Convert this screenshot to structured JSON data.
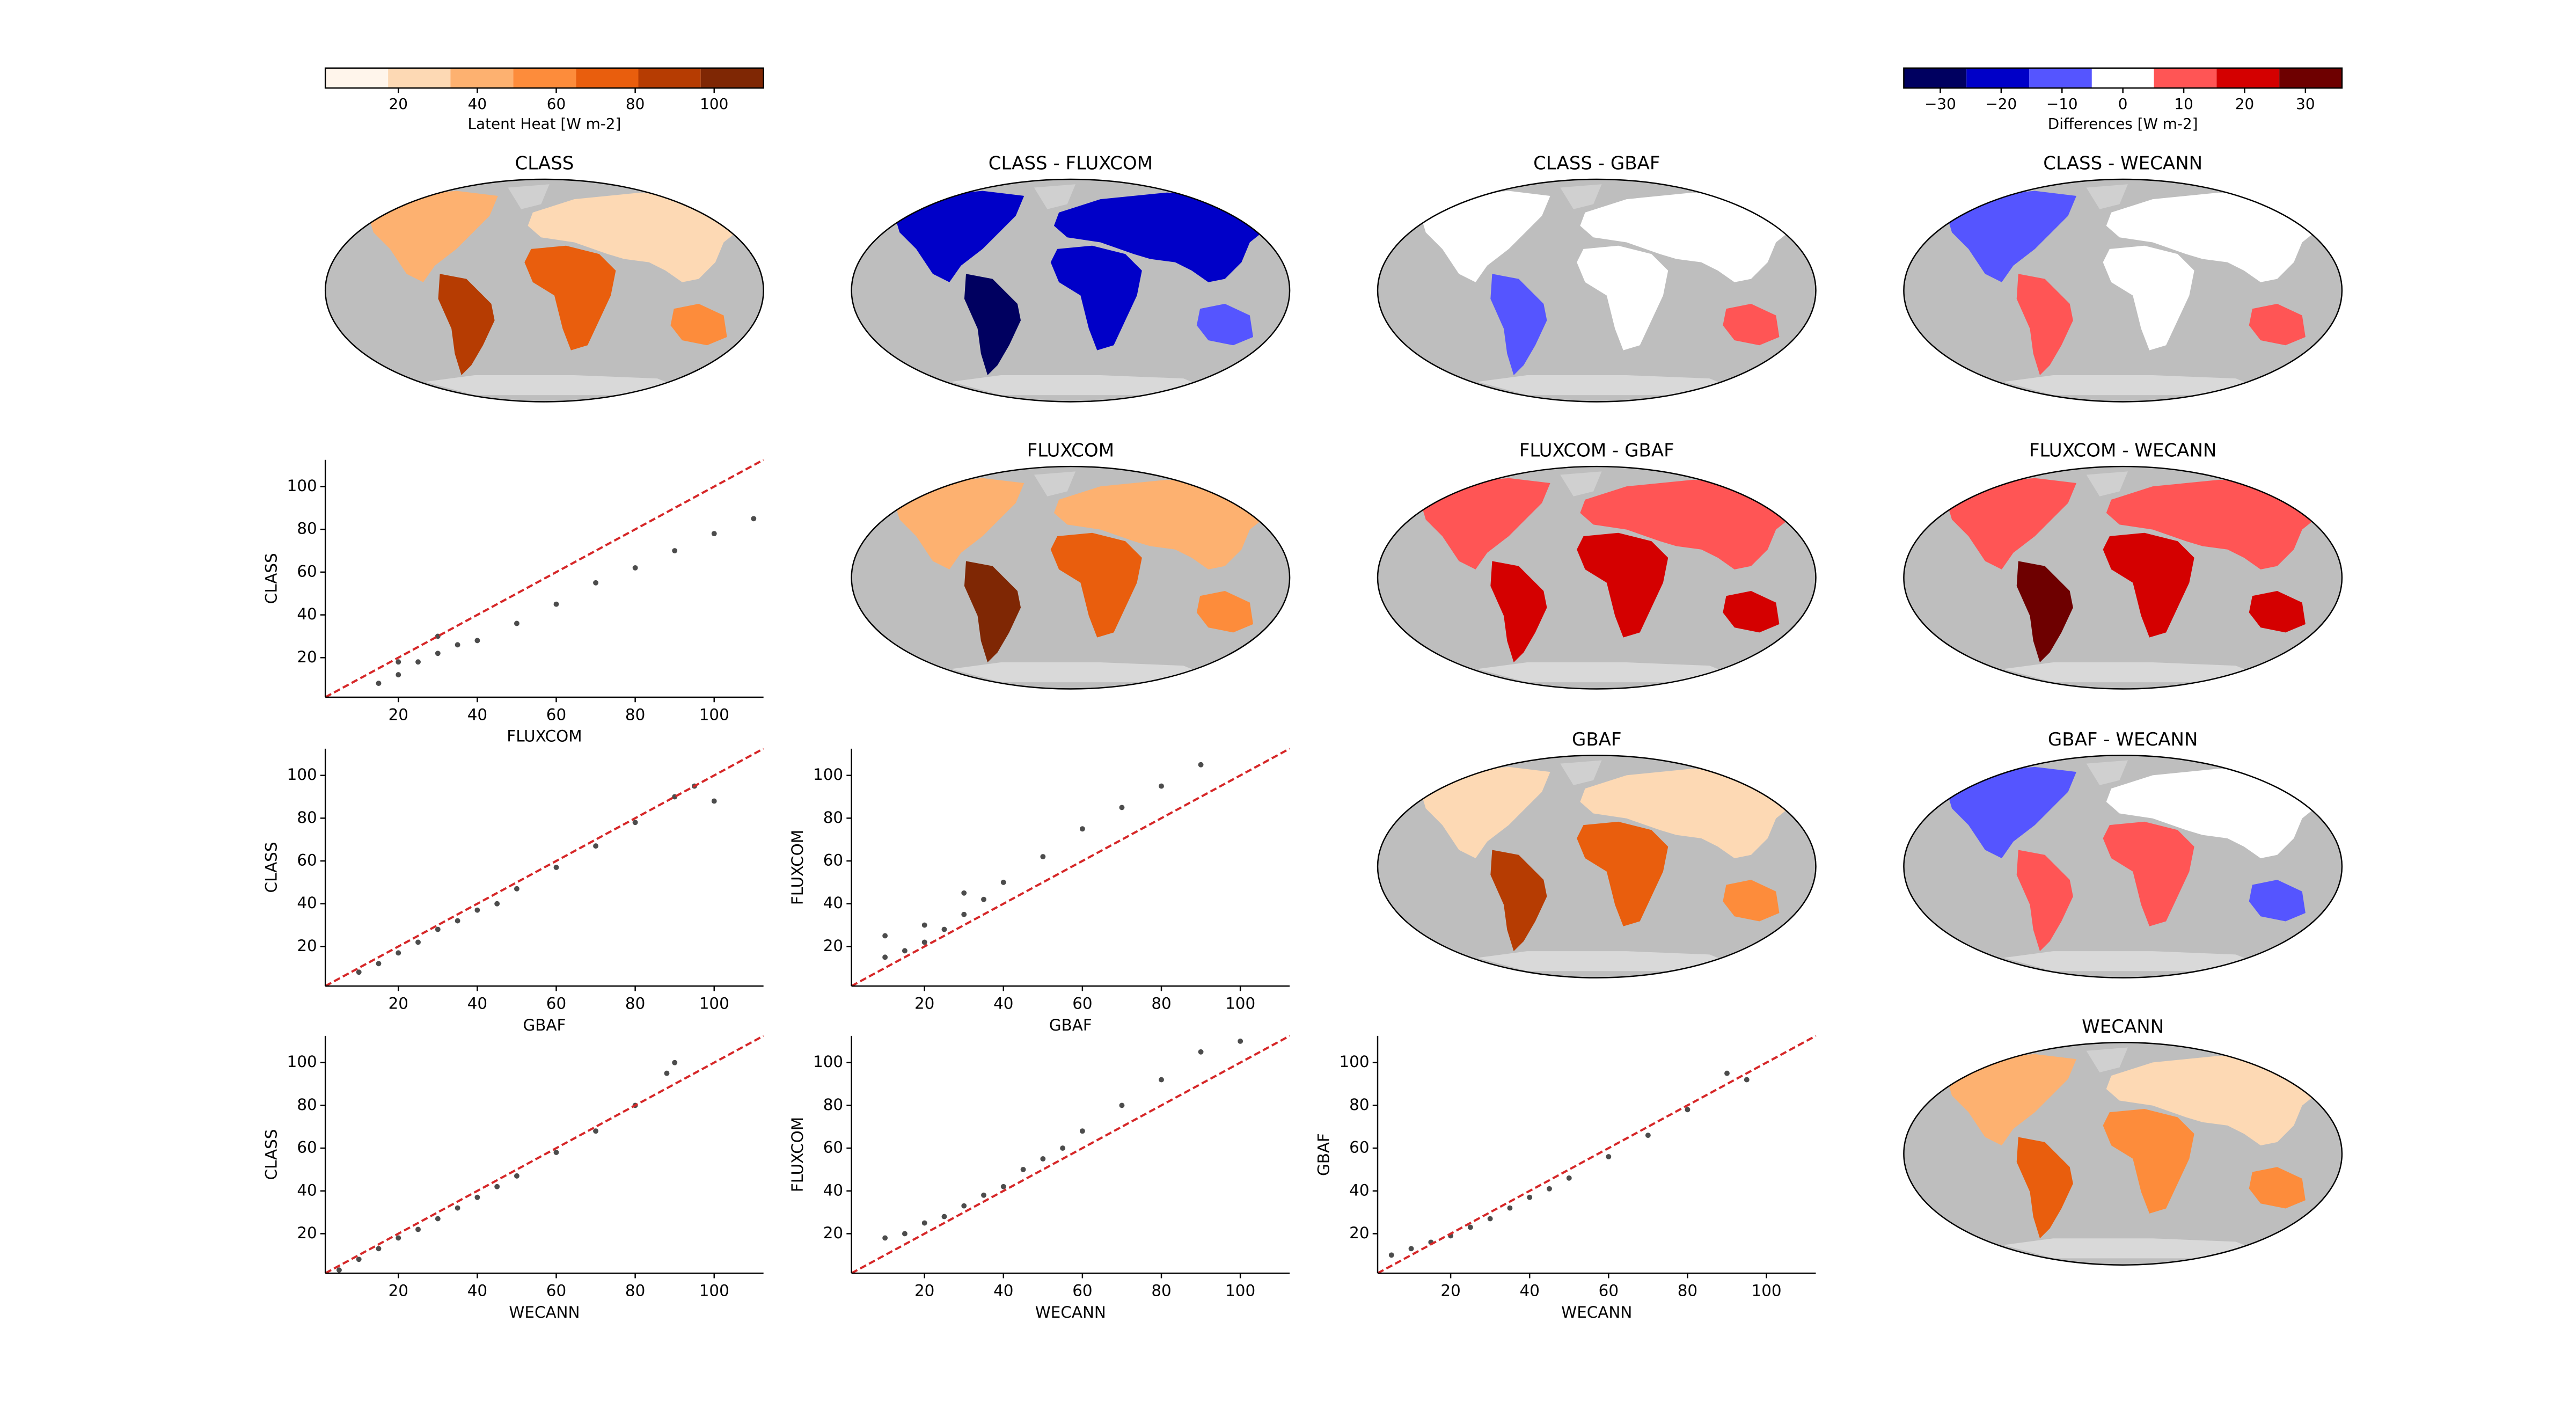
{
  "chart_data": [
    {
      "type": "colorbar",
      "label": "Latent Heat [W m-2]",
      "xlim": [
        1.5,
        112.5
      ],
      "bounds": [
        17.4,
        33.2,
        49.1,
        65,
        80.8,
        96.6
      ],
      "colors": [
        "#fff5eb",
        "#fdd9b4",
        "#fdb170",
        "#fd8c3b",
        "#e95e0d",
        "#b63c02",
        "#7f2704"
      ],
      "xticks": [
        20,
        40,
        60,
        80,
        100
      ]
    },
    {
      "type": "colorbar",
      "label": "Differences [W m-2]",
      "xlim": [
        -36,
        36
      ],
      "bounds": [
        -25.7,
        -15.4,
        -5.1,
        5.1,
        15.4,
        25.7
      ],
      "colors": [
        "#000060",
        "#0000c8",
        "#5555ff",
        "#ffffff",
        "#ff5555",
        "#d40000",
        "#6e0000"
      ],
      "xticks": [
        {
          "value": -30,
          "label": "−30"
        },
        {
          "value": -20,
          "label": "−20"
        },
        {
          "value": -10,
          "label": "−10"
        },
        0,
        10,
        20,
        30
      ]
    },
    {
      "type": "map",
      "title": "CLASS",
      "colors": [
        "#fdb170",
        "#b63c02",
        "#e95e0d",
        "#fdd9b4",
        "#fd8c3b"
      ]
    },
    {
      "type": "map",
      "title": "CLASS - FLUXCOM",
      "colors": [
        "#0000c8",
        "#000060",
        "#0000c8",
        "#0000c8",
        "#5555ff"
      ]
    },
    {
      "type": "map",
      "title": "CLASS - GBAF",
      "colors": [
        "#ffffff",
        "#5555ff",
        "#ffffff",
        "#ffffff",
        "#ff5555"
      ]
    },
    {
      "type": "map",
      "title": "CLASS - WECANN",
      "colors": [
        "#5555ff",
        "#ff5555",
        "#ffffff",
        "#ffffff",
        "#ff5555"
      ]
    },
    {
      "type": "map",
      "title": "FLUXCOM",
      "colors": [
        "#fdb170",
        "#7f2704",
        "#e95e0d",
        "#fdb170",
        "#fd8c3b"
      ]
    },
    {
      "type": "map",
      "title": "FLUXCOM - GBAF",
      "colors": [
        "#ff5555",
        "#d40000",
        "#d40000",
        "#ff5555",
        "#d40000"
      ]
    },
    {
      "type": "map",
      "title": "FLUXCOM - WECANN",
      "colors": [
        "#ff5555",
        "#6e0000",
        "#d40000",
        "#ff5555",
        "#d40000"
      ]
    },
    {
      "type": "map",
      "title": "GBAF",
      "colors": [
        "#fdd9b4",
        "#b63c02",
        "#e95e0d",
        "#fdd9b4",
        "#fd8c3b"
      ]
    },
    {
      "type": "map",
      "title": "GBAF - WECANN",
      "colors": [
        "#5555ff",
        "#ff5555",
        "#ff5555",
        "#ffffff",
        "#5555ff"
      ]
    },
    {
      "type": "map",
      "title": "WECANN",
      "colors": [
        "#fdb170",
        "#e95e0d",
        "#fd8c3b",
        "#fdd9b4",
        "#fd8c3b"
      ]
    },
    {
      "type": "scatter",
      "xlabel": "FLUXCOM",
      "ylabel": "CLASS",
      "xlim": [
        1.5,
        112.5
      ],
      "ylim": [
        1.5,
        112.5
      ],
      "xticks": [
        20,
        40,
        60,
        80,
        100
      ],
      "yticks": [
        20,
        40,
        60,
        80,
        100
      ],
      "color": "#000000",
      "x": [
        15,
        20,
        25,
        30,
        35,
        40,
        50,
        60,
        70,
        80,
        90,
        100,
        110,
        20,
        30
      ],
      "y": [
        8,
        12,
        18,
        22,
        26,
        28,
        36,
        45,
        55,
        62,
        70,
        78,
        85,
        18,
        30
      ],
      "line": {
        "x": [
          1.5,
          112.5
        ],
        "y": [
          1.5,
          112.5
        ],
        "color": "#d62728"
      }
    },
    {
      "type": "scatter",
      "xlabel": "GBAF",
      "ylabel": "CLASS",
      "xlim": [
        1.5,
        112.5
      ],
      "ylim": [
        1.5,
        112.5
      ],
      "xticks": [
        20,
        40,
        60,
        80,
        100
      ],
      "yticks": [
        20,
        40,
        60,
        80,
        100
      ],
      "color": "#000000",
      "x": [
        10,
        15,
        20,
        25,
        30,
        40,
        50,
        60,
        70,
        80,
        90,
        95,
        100,
        35,
        45
      ],
      "y": [
        8,
        12,
        17,
        22,
        28,
        37,
        47,
        57,
        67,
        78,
        90,
        95,
        88,
        32,
        40
      ],
      "line": {
        "x": [
          1.5,
          112.5
        ],
        "y": [
          1.5,
          112.5
        ],
        "color": "#d62728"
      }
    },
    {
      "type": "scatter",
      "xlabel": "GBAF",
      "ylabel": "FLUXCOM",
      "xlim": [
        1.5,
        112.5
      ],
      "ylim": [
        1.5,
        112.5
      ],
      "xticks": [
        20,
        40,
        60,
        80,
        100
      ],
      "yticks": [
        20,
        40,
        60,
        80,
        100
      ],
      "color": "#000000",
      "x": [
        10,
        15,
        20,
        25,
        30,
        35,
        40,
        50,
        60,
        70,
        80,
        90,
        20,
        10,
        30
      ],
      "y": [
        15,
        18,
        22,
        28,
        35,
        42,
        50,
        62,
        75,
        85,
        95,
        105,
        30,
        25,
        45
      ],
      "line": {
        "x": [
          1.5,
          112.5
        ],
        "y": [
          1.5,
          112.5
        ],
        "color": "#d62728"
      }
    },
    {
      "type": "scatter",
      "xlabel": "WECANN",
      "ylabel": "CLASS",
      "xlim": [
        1.5,
        112.5
      ],
      "ylim": [
        1.5,
        112.5
      ],
      "xticks": [
        20,
        40,
        60,
        80,
        100
      ],
      "yticks": [
        20,
        40,
        60,
        80,
        100
      ],
      "color": "#000000",
      "x": [
        5,
        10,
        15,
        20,
        30,
        40,
        50,
        60,
        70,
        80,
        88,
        90,
        25,
        35,
        45
      ],
      "y": [
        3,
        8,
        13,
        18,
        27,
        37,
        47,
        58,
        68,
        80,
        95,
        100,
        22,
        32,
        42
      ],
      "line": {
        "x": [
          1.5,
          112.5
        ],
        "y": [
          1.5,
          112.5
        ],
        "color": "#d62728"
      }
    },
    {
      "type": "scatter",
      "xlabel": "WECANN",
      "ylabel": "FLUXCOM",
      "xlim": [
        1.5,
        112.5
      ],
      "ylim": [
        1.5,
        112.5
      ],
      "xticks": [
        20,
        40,
        60,
        80,
        100
      ],
      "yticks": [
        20,
        40,
        60,
        80,
        100
      ],
      "color": "#000000",
      "x": [
        10,
        15,
        20,
        30,
        40,
        50,
        60,
        70,
        80,
        90,
        100,
        25,
        35,
        45,
        55
      ],
      "y": [
        18,
        20,
        25,
        33,
        42,
        55,
        68,
        80,
        92,
        105,
        110,
        28,
        38,
        50,
        60
      ],
      "line": {
        "x": [
          1.5,
          112.5
        ],
        "y": [
          1.5,
          112.5
        ],
        "color": "#d62728"
      }
    },
    {
      "type": "scatter",
      "xlabel": "WECANN",
      "ylabel": "GBAF",
      "xlim": [
        1.5,
        112.5
      ],
      "ylim": [
        1.5,
        112.5
      ],
      "xticks": [
        20,
        40,
        60,
        80,
        100
      ],
      "yticks": [
        20,
        40,
        60,
        80,
        100
      ],
      "color": "#000000",
      "x": [
        5,
        10,
        15,
        20,
        30,
        40,
        50,
        60,
        70,
        80,
        90,
        95,
        25,
        35,
        45
      ],
      "y": [
        10,
        13,
        16,
        19,
        27,
        37,
        46,
        56,
        66,
        78,
        95,
        92,
        23,
        32,
        41
      ],
      "line": {
        "x": [
          1.5,
          112.5
        ],
        "y": [
          1.5,
          112.5
        ],
        "color": "#d62728"
      }
    }
  ]
}
